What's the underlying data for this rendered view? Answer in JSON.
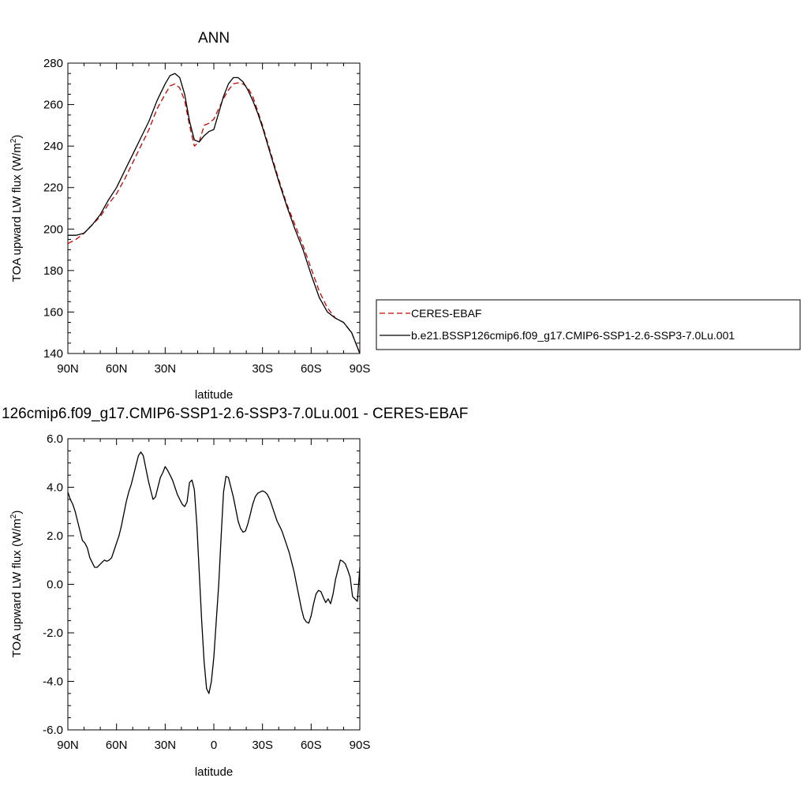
{
  "chart_data": [
    {
      "type": "line",
      "title": "ANN",
      "xlabel": "latitude",
      "ylabel": "TOA upward LW flux (W/m",
      "ylabel_sup": "2",
      "ylabel_tail": ")",
      "xlim": [
        90,
        -90
      ],
      "ylim": [
        140,
        280
      ],
      "x_ticks": [
        {
          "value": 90,
          "label": "90N"
        },
        {
          "value": 60,
          "label": "60N"
        },
        {
          "value": 30,
          "label": "30N"
        },
        {
          "value": 0,
          "label": ""
        },
        {
          "value": -30,
          "label": "30S"
        },
        {
          "value": -60,
          "label": "60S"
        },
        {
          "value": -90,
          "label": "90S"
        }
      ],
      "y_ticks": [
        {
          "value": 140,
          "label": "140"
        },
        {
          "value": 160,
          "label": "160"
        },
        {
          "value": 180,
          "label": "180"
        },
        {
          "value": 200,
          "label": "200"
        },
        {
          "value": 220,
          "label": "220"
        },
        {
          "value": 240,
          "label": "240"
        },
        {
          "value": 260,
          "label": "260"
        },
        {
          "value": 280,
          "label": "280"
        }
      ],
      "legend_position": "right",
      "series": [
        {
          "name": "CERES-EBAF",
          "color": "#cc0000",
          "dash": "dashed",
          "x": [
            90,
            85,
            80,
            75,
            70,
            65,
            60,
            55,
            50,
            45,
            40,
            35,
            30,
            27,
            24,
            21,
            18,
            15,
            12,
            9,
            6,
            3,
            0,
            -3,
            -6,
            -9,
            -12,
            -15,
            -18,
            -21,
            -24,
            -27,
            -30,
            -35,
            -40,
            -45,
            -50,
            -55,
            -60,
            -65,
            -70,
            -75,
            -80,
            -85,
            -90
          ],
          "y": [
            193,
            195,
            198,
            202,
            206,
            212,
            217,
            224,
            232,
            240,
            248,
            258,
            265,
            269,
            270,
            268,
            262,
            250,
            240,
            242,
            250,
            251,
            253,
            258,
            263,
            267,
            270,
            270.5,
            270,
            268,
            264,
            257,
            250,
            237,
            224,
            212,
            202,
            192,
            181,
            170,
            162,
            157,
            155,
            150,
            140
          ]
        },
        {
          "name": "b.e21.BSSP126cmip6.f09_g17.CMIP6-SSP1-2.6-SSP3-7.0Lu.001",
          "color": "#000000",
          "dash": "solid",
          "x": [
            90,
            85,
            80,
            75,
            70,
            65,
            60,
            55,
            50,
            45,
            40,
            35,
            30,
            27,
            24,
            21,
            18,
            15,
            12,
            9,
            6,
            3,
            0,
            -3,
            -6,
            -9,
            -12,
            -15,
            -18,
            -21,
            -24,
            -27,
            -30,
            -35,
            -40,
            -45,
            -50,
            -55,
            -60,
            -65,
            -70,
            -75,
            -80,
            -85,
            -90
          ],
          "y": [
            197,
            197,
            198,
            202,
            207,
            214,
            220,
            228,
            236,
            244,
            252,
            262,
            270,
            274,
            275,
            273,
            265,
            252,
            243,
            242,
            245,
            247,
            248,
            256,
            264,
            270,
            273,
            273,
            271,
            267,
            262,
            256,
            249,
            236,
            223,
            211,
            200,
            190,
            178,
            167,
            160,
            157,
            155,
            150,
            140
          ]
        }
      ]
    },
    {
      "type": "line",
      "title": "126cmip6.f09_g17.CMIP6-SSP1-2.6-SSP3-7.0Lu.001 - CERES-EBAF",
      "xlabel": "latitude",
      "ylabel": "TOA upward LW flux (W/m",
      "ylabel_sup": "2",
      "ylabel_tail": ")",
      "xlim": [
        90,
        -90
      ],
      "ylim": [
        -6,
        6
      ],
      "x_ticks": [
        {
          "value": 90,
          "label": "90N"
        },
        {
          "value": 60,
          "label": "60N"
        },
        {
          "value": 30,
          "label": "30N"
        },
        {
          "value": 0,
          "label": "0"
        },
        {
          "value": -30,
          "label": "30S"
        },
        {
          "value": -60,
          "label": "60S"
        },
        {
          "value": -90,
          "label": "90S"
        }
      ],
      "y_ticks": [
        {
          "value": -6,
          "label": "-6.0"
        },
        {
          "value": -4,
          "label": "-4.0"
        },
        {
          "value": -2,
          "label": "-2.0"
        },
        {
          "value": 0,
          "label": "0.0"
        },
        {
          "value": 2,
          "label": "2.0"
        },
        {
          "value": 4,
          "label": "4.0"
        },
        {
          "value": 6,
          "label": "6.0"
        }
      ],
      "series": [
        {
          "color": "#000000",
          "dash": "solid",
          "x": [
            90,
            88.5,
            87,
            85.5,
            84,
            82.5,
            81,
            79.5,
            78,
            76.5,
            75,
            73.5,
            72,
            70.5,
            69,
            67.5,
            66,
            64.5,
            63,
            61.5,
            60,
            58.5,
            57,
            55.5,
            54,
            52.5,
            51,
            49.5,
            48,
            46.5,
            45,
            43.5,
            42,
            40.5,
            39,
            37.5,
            36,
            34.5,
            33,
            31.5,
            30,
            28.5,
            27,
            25.5,
            24,
            22.5,
            21,
            19.5,
            18,
            16.5,
            15,
            13.5,
            12,
            10.5,
            9,
            7.5,
            6,
            4.5,
            3,
            1.5,
            0,
            -1.5,
            -3,
            -4.5,
            -6,
            -7.5,
            -9,
            -10.5,
            -12,
            -13.5,
            -15,
            -16.5,
            -18,
            -19.5,
            -21,
            -22.5,
            -24,
            -25.5,
            -27,
            -28.5,
            -30,
            -31.5,
            -33,
            -34.5,
            -36,
            -37.5,
            -39,
            -40.5,
            -42,
            -43.5,
            -45,
            -46.5,
            -48,
            -49.5,
            -51,
            -52.5,
            -54,
            -55.5,
            -57,
            -58.5,
            -60,
            -61.5,
            -63,
            -64.5,
            -66,
            -67.5,
            -69,
            -70.5,
            -72,
            -73.5,
            -75,
            -76.5,
            -78,
            -79.5,
            -81,
            -82.5,
            -84,
            -85.5,
            -87,
            -88.5,
            -90
          ],
          "y": [
            3.8,
            3.5,
            3.3,
            3.0,
            2.6,
            2.2,
            1.8,
            1.7,
            1.5,
            1.1,
            0.9,
            0.7,
            0.7,
            0.8,
            0.9,
            1.0,
            0.95,
            1.0,
            1.1,
            1.4,
            1.7,
            2.0,
            2.4,
            2.9,
            3.4,
            3.8,
            4.1,
            4.5,
            4.9,
            5.3,
            5.45,
            5.3,
            4.8,
            4.3,
            3.9,
            3.5,
            3.6,
            4.0,
            4.4,
            4.6,
            4.85,
            4.7,
            4.5,
            4.3,
            4.0,
            3.7,
            3.5,
            3.3,
            3.2,
            3.4,
            4.2,
            4.3,
            3.9,
            2.5,
            0.5,
            -1.5,
            -3.2,
            -4.3,
            -4.5,
            -4.0,
            -3.0,
            -1.5,
            0.0,
            2.0,
            3.8,
            4.45,
            4.4,
            4.0,
            3.6,
            3.1,
            2.6,
            2.3,
            2.15,
            2.2,
            2.5,
            2.9,
            3.3,
            3.6,
            3.75,
            3.8,
            3.85,
            3.8,
            3.7,
            3.5,
            3.2,
            2.9,
            2.6,
            2.4,
            2.2,
            1.9,
            1.6,
            1.3,
            0.9,
            0.5,
            0.0,
            -0.5,
            -1.0,
            -1.4,
            -1.55,
            -1.6,
            -1.3,
            -0.8,
            -0.4,
            -0.25,
            -0.3,
            -0.55,
            -0.75,
            -0.6,
            -0.8,
            -0.4,
            0.2,
            0.6,
            1.0,
            0.95,
            0.85,
            0.6,
            0.3,
            -0.5,
            -0.6,
            -0.7,
            0.7
          ]
        }
      ]
    }
  ]
}
